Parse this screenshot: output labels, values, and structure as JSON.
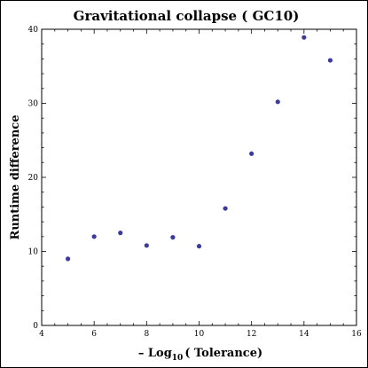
{
  "chart_data": {
    "type": "scatter",
    "title": "Gravitational collapse ( GC10)",
    "xlabel": {
      "prefix": "– Log",
      "subscript": "10",
      "suffix": "( Tolerance)"
    },
    "ylabel": "Runtime difference",
    "xlim": [
      4,
      16
    ],
    "ylim": [
      0,
      40
    ],
    "xticks": [
      4,
      6,
      8,
      10,
      12,
      14,
      16
    ],
    "yticks": [
      0,
      10,
      20,
      30,
      40
    ],
    "grid": false,
    "legend": null,
    "point_color": "#3b3b9b",
    "points": [
      {
        "x": 5,
        "y": 9.0
      },
      {
        "x": 6,
        "y": 12.0
      },
      {
        "x": 7,
        "y": 12.5
      },
      {
        "x": 8,
        "y": 10.8
      },
      {
        "x": 9,
        "y": 11.9
      },
      {
        "x": 10,
        "y": 10.7
      },
      {
        "x": 11,
        "y": 15.8
      },
      {
        "x": 12,
        "y": 23.2
      },
      {
        "x": 13,
        "y": 30.2
      },
      {
        "x": 14,
        "y": 38.9
      },
      {
        "x": 15,
        "y": 35.8
      }
    ]
  }
}
